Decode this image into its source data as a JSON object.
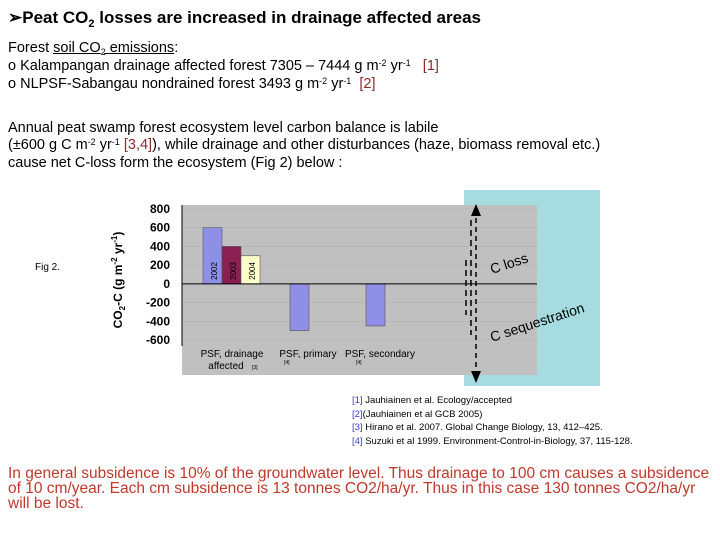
{
  "title": {
    "prefix": "Peat CO",
    "sub": "2",
    "suffix": " losses are increased in drainage affected areas"
  },
  "block1": {
    "heading_pre": "Forest ",
    "heading_u": "soil CO",
    "heading_sub": "2",
    "heading_u2": " emissions",
    "heading_post": ":",
    "line1_text": "o  Kalampangan drainage affected forest 7305 – 7444 g m",
    "line1_sup1": "-2",
    "line1_mid": " yr",
    "line1_sup2": "-1",
    "line1_ref": "[1]",
    "line2_text": "o  NLPSF-Sabangau nondrained forest 3493 g m",
    "line2_sup1": "-2",
    "line2_mid": " yr",
    "line2_sup2": "-1",
    "line2_ref": "[2]"
  },
  "block2": {
    "line1": "Annual peat swamp forest ecosystem level carbon balance is labile",
    "line2_pre": "(±600 g C m",
    "line2_sup1": "-2",
    "line2_mid": " yr",
    "line2_sup2": "-1",
    "line2_ref": "[3,4]",
    "line2_post": "), while drainage and other disturbances (haze, biomass removal etc.)",
    "line3": "cause net C-loss form the ecosystem  (Fig 2) below :"
  },
  "fig_label": "Fig 2.",
  "chart_data": {
    "type": "bar",
    "ylabel_pre": "CO",
    "ylabel_sub": "2",
    "ylabel_post": "-C (g m",
    "ylabel_sup1": "-2",
    "ylabel_mid": " yr",
    "ylabel_sup2": "-1",
    "ylabel_end": ")",
    "ylim": [
      -600,
      800
    ],
    "yticks": [
      "800",
      "600",
      "400",
      "200",
      "0",
      "-200",
      "-400",
      "-600"
    ],
    "categories": [
      {
        "name": "PSF, drainage affected",
        "line1": "PSF, drainage",
        "line2": "affected",
        "ref": "[3]"
      },
      {
        "name": "PSF, primary",
        "line1": "PSF, primary",
        "line2": "",
        "ref": "[4]"
      },
      {
        "name": "PSF, secondary",
        "line1": "PSF, secondary",
        "line2": "",
        "ref": "[4]"
      }
    ],
    "bars": [
      {
        "category": 0,
        "label": "2002",
        "value": 600,
        "color": "#8f8fe8"
      },
      {
        "category": 0,
        "label": "2003",
        "value": 400,
        "color": "#8a2052"
      },
      {
        "category": 0,
        "label": "2004",
        "value": 300,
        "color": "#ffffcc"
      },
      {
        "category": 1,
        "label": "",
        "value": -500,
        "color": "#8f8fe8"
      },
      {
        "category": 2,
        "label": "",
        "value": -450,
        "color": "#8f8fe8"
      }
    ],
    "plot_bg": "#c0c0c0",
    "panel_bg": "#a6dce0",
    "annotations": {
      "loss": "C loss",
      "sequestration": "C sequestration"
    }
  },
  "references": [
    {
      "num": "[1]",
      "text": " Jauhiainen et al. Ecology/accepted"
    },
    {
      "num": "[2]",
      "text": "(Jauhiainen et al GCB 2005)"
    },
    {
      "num": "[3]",
      "text": " Hirano et al. 2007. Global Change Biology, 13, 412–425."
    },
    {
      "num": "[4]",
      "text": " Suzuki et al 1999. Environment-Control-in-Biology, 37, 115-128."
    }
  ],
  "bottom_text": "In general subsidence is 10% of the groundwater level. Thus drainage to 100 cm causes a subsidence of 10 cm/year. Each cm subsidence is 13 tonnes CO2/ha/yr. Thus in this case 130 tonnes CO2/ha/yr will be lost."
}
